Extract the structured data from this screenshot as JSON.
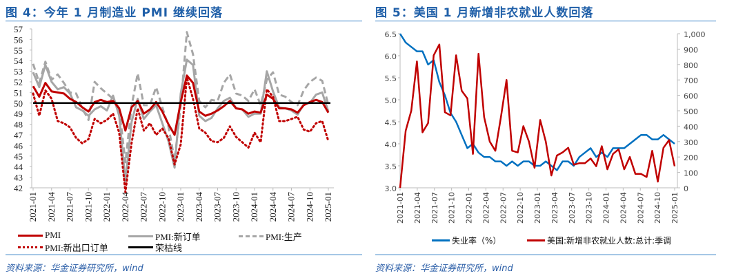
{
  "left": {
    "title": "图 4：今年 1 月制造业 PMI 继续回落",
    "source": "资料来源：华金证券研究所，wind",
    "legend": [
      "PMI",
      "PMI:新订单",
      "PMI:生产",
      "PMI:新出口订单",
      "荣枯线"
    ]
  },
  "right": {
    "title": "图 5：美国 1 月新增非农就业人数回落",
    "source": "资料来源：华金证券研究所，wind",
    "legend": [
      "失业率（%）",
      "美国:新增非农就业人数:总计:季调"
    ]
  },
  "chart_data": [
    {
      "type": "line",
      "x_tick_labels": [
        "2021-01",
        "2021-04",
        "2021-07",
        "2021-10",
        "2022-01",
        "2022-04",
        "2022-07",
        "2022-10",
        "2023-01",
        "2023-04",
        "2023-07",
        "2023-10",
        "2024-01",
        "2024-04",
        "2024-07",
        "2024-10",
        "2025-01"
      ],
      "ylim": [
        42,
        57
      ],
      "y_ticks": [
        42,
        43,
        44,
        45,
        46,
        47,
        48,
        49,
        50,
        51,
        52,
        53,
        54,
        55,
        56,
        57
      ],
      "reference_line": {
        "name": "荣枯线",
        "value": 50,
        "color": "#000000"
      },
      "series": [
        {
          "name": "PMI",
          "color": "#c00000",
          "style": "solid",
          "values": [
            51.6,
            50.6,
            51.9,
            51.1,
            51.0,
            50.9,
            50.4,
            50.1,
            49.6,
            49.2,
            50.1,
            50.3,
            50.1,
            50.2,
            49.5,
            47.4,
            49.6,
            50.2,
            49.0,
            49.4,
            50.1,
            49.2,
            48.0,
            47.0,
            50.1,
            52.6,
            51.9,
            49.2,
            48.8,
            49.0,
            49.3,
            49.7,
            50.2,
            49.5,
            49.4,
            49.0,
            49.2,
            49.1,
            50.8,
            50.4,
            49.5,
            49.5,
            49.4,
            49.1,
            49.8,
            50.1,
            50.3,
            50.1,
            49.1
          ]
        },
        {
          "name": "PMI:新订单",
          "color": "#a6a6a6",
          "style": "solid",
          "values": [
            52.9,
            51.5,
            53.6,
            52.0,
            51.3,
            51.5,
            50.9,
            49.6,
            49.3,
            48.8,
            49.4,
            49.7,
            49.3,
            50.7,
            48.8,
            42.6,
            48.2,
            50.4,
            48.5,
            49.2,
            49.8,
            48.1,
            46.4,
            43.9,
            50.9,
            54.1,
            53.6,
            48.8,
            48.3,
            48.6,
            49.5,
            50.2,
            50.5,
            49.5,
            49.4,
            48.7,
            49.0,
            49.0,
            53.0,
            51.1,
            49.6,
            49.5,
            49.3,
            48.9,
            49.9,
            50.0,
            50.8,
            51.0,
            49.2
          ]
        },
        {
          "name": "PMI:生产",
          "color": "#a6a6a6",
          "style": "dashed",
          "values": [
            53.7,
            51.9,
            53.9,
            52.2,
            52.7,
            51.9,
            51.0,
            50.9,
            49.5,
            48.4,
            52.0,
            51.4,
            50.9,
            50.4,
            49.5,
            44.4,
            49.7,
            52.8,
            49.8,
            49.8,
            51.5,
            49.6,
            47.8,
            44.6,
            49.8,
            56.7,
            54.6,
            50.2,
            49.6,
            50.3,
            50.2,
            51.9,
            52.7,
            50.9,
            50.7,
            50.2,
            51.3,
            49.8,
            52.2,
            52.9,
            50.8,
            50.6,
            50.1,
            49.8,
            51.2,
            52.0,
            52.4,
            52.1,
            49.8
          ]
        },
        {
          "name": "PMI:新出口订单",
          "color": "#c00000",
          "style": "dotted",
          "values": [
            50.9,
            48.8,
            51.2,
            50.4,
            48.3,
            48.1,
            47.7,
            46.7,
            46.2,
            46.6,
            48.5,
            48.1,
            48.4,
            49.0,
            47.2,
            41.6,
            46.2,
            49.5,
            47.4,
            48.1,
            47.0,
            47.6,
            46.7,
            44.2,
            46.1,
            52.4,
            50.4,
            47.6,
            47.2,
            46.4,
            46.3,
            46.7,
            47.8,
            46.8,
            46.3,
            45.8,
            47.2,
            46.3,
            51.3,
            50.6,
            48.3,
            48.3,
            48.5,
            48.7,
            47.5,
            47.3,
            48.1,
            48.3,
            46.4
          ]
        }
      ]
    },
    {
      "type": "line",
      "x_tick_labels": [
        "2021-01",
        "2021-04",
        "2021-07",
        "2021-10",
        "2022-01",
        "2022-04",
        "2022-07",
        "2022-10",
        "2023-01",
        "2023-04",
        "2023-07",
        "2023-10",
        "2024-01",
        "2024-04",
        "2024-07",
        "2024-10",
        "2025-01"
      ],
      "ylim_left": [
        3.0,
        6.5
      ],
      "y_ticks_left": [
        "3.0",
        "3.5",
        "4.0",
        "4.5",
        "5.0",
        "5.5",
        "6.0",
        "6.5"
      ],
      "ylim_right": [
        0,
        1000
      ],
      "y_ticks_right": [
        "0",
        "100",
        "200",
        "300",
        "400",
        "500",
        "600",
        "700",
        "800",
        "900",
        "1,000"
      ],
      "series": [
        {
          "name": "失业率（%）",
          "axis": "left",
          "color": "#0070c0",
          "values": [
            6.5,
            6.3,
            6.2,
            6.1,
            6.1,
            5.8,
            5.9,
            5.4,
            5.1,
            4.7,
            4.5,
            4.2,
            3.9,
            4.0,
            3.8,
            3.7,
            3.7,
            3.6,
            3.6,
            3.5,
            3.6,
            3.5,
            3.6,
            3.6,
            3.5,
            3.5,
            3.6,
            3.5,
            3.4,
            3.6,
            3.6,
            3.5,
            3.7,
            3.8,
            3.9,
            3.7,
            3.8,
            3.7,
            3.9,
            3.9,
            3.9,
            4.0,
            4.1,
            4.2,
            4.2,
            4.1,
            4.1,
            4.2,
            4.1,
            4.0
          ]
        },
        {
          "name": "美国:新增非农就业人数:总计:季调",
          "axis": "right",
          "color": "#c00000",
          "values": [
            0,
            370,
            500,
            820,
            360,
            420,
            860,
            930,
            490,
            470,
            860,
            630,
            580,
            220,
            870,
            460,
            300,
            240,
            460,
            700,
            240,
            230,
            400,
            300,
            130,
            440,
            300,
            80,
            210,
            230,
            260,
            150,
            160,
            160,
            190,
            140,
            270,
            120,
            220,
            250,
            120,
            200,
            90,
            90,
            70,
            240,
            40,
            260,
            310,
            140
          ]
        }
      ]
    }
  ]
}
